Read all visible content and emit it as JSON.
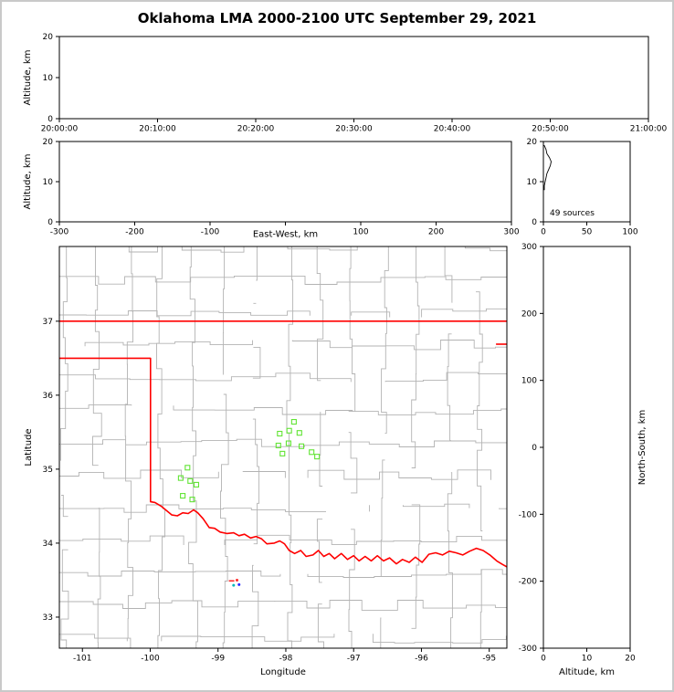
{
  "title": "Oklahoma LMA 2000-2100 UTC September 29, 2021",
  "colors": {
    "background": "#ffffff",
    "frame": "#c9c9c9",
    "axes": "#000000",
    "county_lines": "#b3b3b3",
    "state_border": "#ff0000",
    "source_green": "#62e435",
    "source_red": "#ff2a2a",
    "source_blue": "#2a2aff",
    "source_teal": "#00b8b8"
  },
  "chart_data": [
    {
      "id": "time_altitude",
      "type": "scatter",
      "xlabel": "",
      "ylabel": "Altitude, km",
      "x_tick_labels": [
        "20:00:00",
        "20:10:00",
        "20:20:00",
        "20:30:00",
        "20:40:00",
        "20:50:00",
        "21:00:00"
      ],
      "ylim": [
        0,
        20
      ],
      "y_ticks": [
        0,
        10,
        20
      ],
      "points": []
    },
    {
      "id": "ew_altitude",
      "type": "scatter",
      "xlabel": "East-West, km",
      "ylabel": "Altitude, km",
      "xlim": [
        -300,
        300
      ],
      "x_ticks": [
        -300,
        -200,
        -100,
        0,
        100,
        200,
        300
      ],
      "hide_zero_tick_label": true,
      "ylim": [
        0,
        20
      ],
      "y_ticks": [
        0,
        10,
        20
      ],
      "points": []
    },
    {
      "id": "altitude_histogram",
      "type": "line",
      "annotation": "49 sources",
      "xlabel": "",
      "ylabel": "",
      "xlim": [
        0,
        100
      ],
      "x_ticks": [
        0,
        50,
        100
      ],
      "ylim": [
        0,
        20
      ],
      "y_ticks": [
        0,
        10,
        20
      ],
      "profile": {
        "altitude_km": [
          19,
          18,
          17,
          16,
          15,
          14,
          13,
          12,
          11,
          10,
          9,
          8
        ],
        "counts": [
          1,
          3,
          4,
          7,
          9,
          8,
          6,
          4,
          3,
          2,
          1,
          1
        ]
      }
    },
    {
      "id": "map",
      "type": "scatter",
      "xlabel": "Longitude",
      "ylabel": "Latitude",
      "xlim": [
        -101.34,
        -94.74
      ],
      "ylim": [
        32.58,
        38.01
      ],
      "x_ticks": [
        -101,
        -100,
        -99,
        -98,
        -97,
        -96,
        -95
      ],
      "y_ticks": [
        33,
        34,
        35,
        36,
        37
      ],
      "county_grid": {
        "lon_start": -101.25,
        "lon_step": 0.47,
        "lat_start": 32.72,
        "lat_step": 0.44,
        "jitter": 0.14,
        "seed": 42
      },
      "state_border": [
        {
          "name": "oklahoma-north-border",
          "points": [
            [
              -101.34,
              37.0
            ],
            [
              -94.74,
              37.0
            ]
          ]
        },
        {
          "name": "northeast-segment",
          "points": [
            [
              -94.9,
              36.69
            ],
            [
              -94.74,
              36.69
            ]
          ]
        },
        {
          "name": "panhandle-texas-red-river",
          "points": [
            [
              -101.34,
              36.5
            ],
            [
              -99.996,
              36.5
            ],
            [
              -99.996,
              34.56
            ],
            [
              -99.93,
              34.55
            ],
            [
              -99.84,
              34.5
            ],
            [
              -99.76,
              34.44
            ],
            [
              -99.68,
              34.38
            ],
            [
              -99.6,
              34.37
            ],
            [
              -99.52,
              34.41
            ],
            [
              -99.44,
              34.4
            ],
            [
              -99.36,
              34.45
            ],
            [
              -99.3,
              34.41
            ],
            [
              -99.22,
              34.33
            ],
            [
              -99.13,
              34.21
            ],
            [
              -99.05,
              34.2
            ],
            [
              -98.97,
              34.15
            ],
            [
              -98.87,
              34.13
            ],
            [
              -98.77,
              34.14
            ],
            [
              -98.69,
              34.1
            ],
            [
              -98.61,
              34.12
            ],
            [
              -98.52,
              34.07
            ],
            [
              -98.44,
              34.09
            ],
            [
              -98.36,
              34.06
            ],
            [
              -98.28,
              33.99
            ],
            [
              -98.17,
              34.0
            ],
            [
              -98.09,
              34.03
            ],
            [
              -98.02,
              33.99
            ],
            [
              -97.95,
              33.9
            ],
            [
              -97.87,
              33.86
            ],
            [
              -97.78,
              33.9
            ],
            [
              -97.7,
              33.82
            ],
            [
              -97.6,
              33.84
            ],
            [
              -97.52,
              33.9
            ],
            [
              -97.44,
              33.82
            ],
            [
              -97.36,
              33.86
            ],
            [
              -97.28,
              33.79
            ],
            [
              -97.18,
              33.86
            ],
            [
              -97.09,
              33.78
            ],
            [
              -97.0,
              33.83
            ],
            [
              -96.92,
              33.76
            ],
            [
              -96.83,
              33.82
            ],
            [
              -96.74,
              33.76
            ],
            [
              -96.65,
              33.83
            ],
            [
              -96.56,
              33.76
            ],
            [
              -96.47,
              33.8
            ],
            [
              -96.37,
              33.72
            ],
            [
              -96.28,
              33.78
            ],
            [
              -96.18,
              33.74
            ],
            [
              -96.09,
              33.81
            ],
            [
              -95.99,
              33.74
            ],
            [
              -95.89,
              33.85
            ],
            [
              -95.79,
              33.87
            ],
            [
              -95.69,
              33.84
            ],
            [
              -95.59,
              33.89
            ],
            [
              -95.49,
              33.87
            ],
            [
              -95.39,
              33.84
            ],
            [
              -95.29,
              33.89
            ],
            [
              -95.19,
              33.93
            ],
            [
              -95.09,
              33.9
            ],
            [
              -94.99,
              33.84
            ],
            [
              -94.89,
              33.76
            ],
            [
              -94.8,
              33.71
            ],
            [
              -94.74,
              33.68
            ]
          ]
        }
      ],
      "sources": [
        {
          "lon": -97.88,
          "lat": 35.64,
          "marker": "square"
        },
        {
          "lon": -98.09,
          "lat": 35.48,
          "marker": "square"
        },
        {
          "lon": -97.95,
          "lat": 35.52,
          "marker": "square"
        },
        {
          "lon": -97.8,
          "lat": 35.49,
          "marker": "square"
        },
        {
          "lon": -98.11,
          "lat": 35.32,
          "marker": "square"
        },
        {
          "lon": -97.96,
          "lat": 35.35,
          "marker": "square"
        },
        {
          "lon": -97.77,
          "lat": 35.31,
          "marker": "square"
        },
        {
          "lon": -97.62,
          "lat": 35.23,
          "marker": "square"
        },
        {
          "lon": -97.54,
          "lat": 35.17,
          "marker": "square"
        },
        {
          "lon": -98.05,
          "lat": 35.21,
          "marker": "square"
        },
        {
          "lon": -99.45,
          "lat": 35.02,
          "marker": "square"
        },
        {
          "lon": -99.55,
          "lat": 34.88,
          "marker": "square"
        },
        {
          "lon": -99.41,
          "lat": 34.84,
          "marker": "square"
        },
        {
          "lon": -99.32,
          "lat": 34.79,
          "marker": "square"
        },
        {
          "lon": -99.52,
          "lat": 34.64,
          "marker": "square"
        },
        {
          "lon": -99.38,
          "lat": 34.59,
          "marker": "square"
        },
        {
          "lon": -98.8,
          "lat": 33.49,
          "marker": "dash",
          "color": "#ff2a2a"
        },
        {
          "lon": -98.72,
          "lat": 33.5,
          "marker": "dot",
          "color": "#ff2a2a"
        },
        {
          "lon": -98.69,
          "lat": 33.44,
          "marker": "dot",
          "color": "#2a2aff"
        },
        {
          "lon": -98.77,
          "lat": 33.43,
          "marker": "dot",
          "color": "#00b8b8"
        }
      ]
    },
    {
      "id": "ns_altitude",
      "type": "scatter",
      "xlabel": "Altitude, km",
      "ylabel": "North-South, km",
      "xlim": [
        0,
        20
      ],
      "x_ticks": [
        0,
        10,
        20
      ],
      "ylim": [
        -300,
        300
      ],
      "y_ticks": [
        -300,
        -200,
        -100,
        0,
        100,
        200,
        300
      ],
      "points": []
    }
  ]
}
